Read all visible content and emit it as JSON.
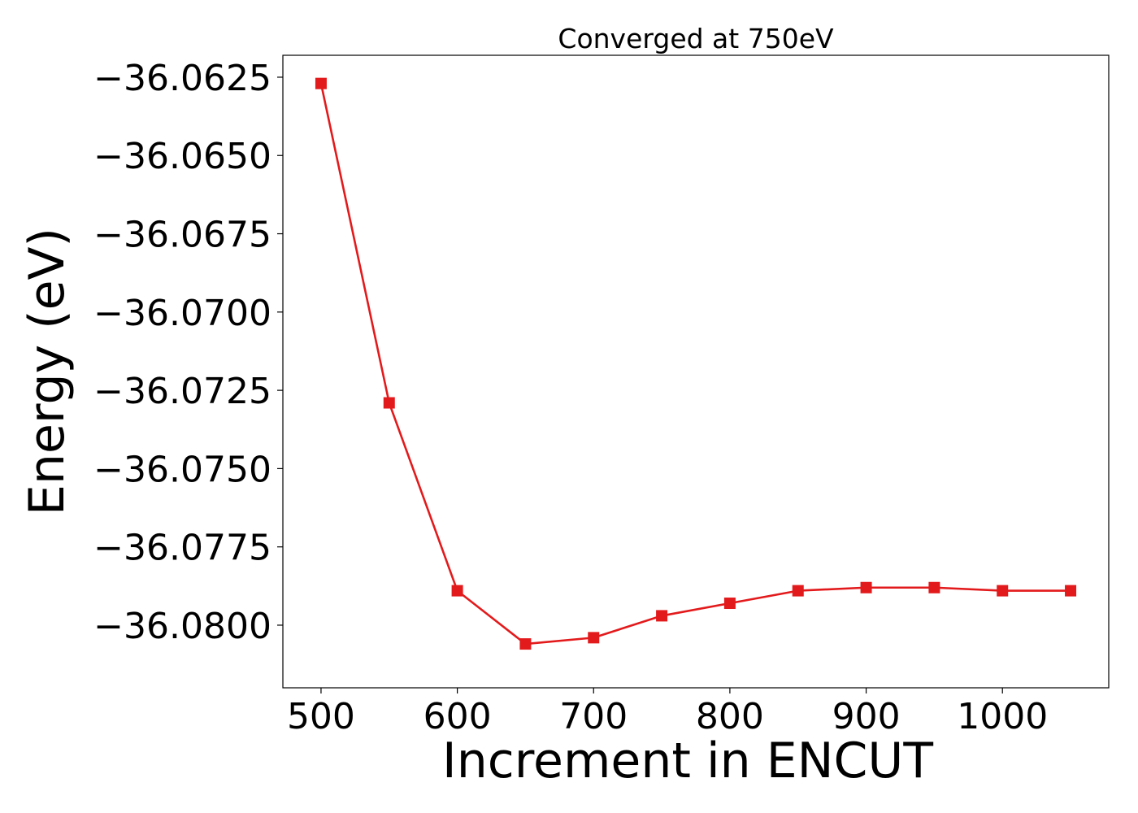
{
  "chart_data": {
    "type": "line",
    "title": "Converged at 750eV",
    "xlabel": "Increment in ENCUT",
    "ylabel": "Energy (eV)",
    "x": [
      500,
      550,
      600,
      650,
      700,
      750,
      800,
      850,
      900,
      950,
      1000,
      1050
    ],
    "series": [
      {
        "values": [
          -36.0627,
          -36.0729,
          -36.0789,
          -36.0806,
          -36.0804,
          -36.0797,
          -36.0793,
          -36.0789,
          -36.0788,
          -36.0788,
          -36.0789,
          -36.0789
        ],
        "color": "#e31a1c",
        "marker": "square"
      }
    ],
    "xlim": [
      472,
      1078
    ],
    "ylim": [
      -36.082,
      -36.0618
    ],
    "xticks": [
      500,
      600,
      700,
      800,
      900,
      1000
    ],
    "xtick_labels": [
      "500",
      "600",
      "700",
      "800",
      "900",
      "1000"
    ],
    "yticks": [
      -36.0625,
      -36.065,
      -36.0675,
      -36.07,
      -36.0725,
      -36.075,
      -36.0775,
      -36.08
    ],
    "ytick_labels": [
      "−36.0625",
      "−36.0650",
      "−36.0675",
      "−36.0700",
      "−36.0725",
      "−36.0750",
      "−36.0775",
      "−36.0800"
    ],
    "grid": false,
    "legend": false
  }
}
